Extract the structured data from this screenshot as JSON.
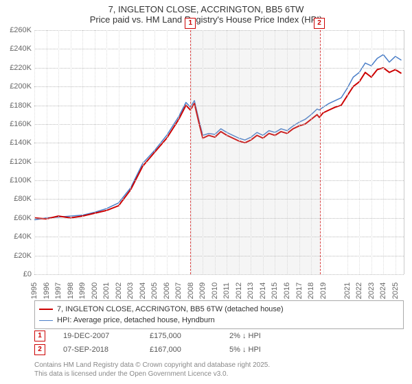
{
  "title": {
    "line1": "7, INGLETON CLOSE, ACCRINGTON, BB5 6TW",
    "line2": "Price paid vs. HM Land Registry's House Price Index (HPI)"
  },
  "chart": {
    "type": "line",
    "xlim": [
      1995,
      2025.7
    ],
    "ylim": [
      0,
      260000
    ],
    "ytick_step": 20000,
    "x_ticks": [
      1995,
      1996,
      1997,
      1998,
      1999,
      2000,
      2001,
      2002,
      2003,
      2004,
      2005,
      2006,
      2007,
      2008,
      2009,
      2010,
      2011,
      2012,
      2013,
      2014,
      2015,
      2016,
      2017,
      2018,
      2019,
      2021,
      2022,
      2023,
      2024,
      2025
    ],
    "y_ticks_labels": [
      "£0",
      "£20K",
      "£40K",
      "£60K",
      "£80K",
      "£100K",
      "£120K",
      "£140K",
      "£160K",
      "£180K",
      "£200K",
      "£220K",
      "£240K",
      "£260K"
    ],
    "background_color": "#ffffff",
    "grid_color": "#bbbbbb",
    "shaded_region": {
      "start": 2007.97,
      "end": 2018.68
    },
    "series": {
      "price_paid": {
        "label": "7, INGLETON CLOSE, ACCRINGTON, BB5 6TW (detached house)",
        "color": "#cc0000",
        "line_width": 2,
        "points": [
          [
            1995,
            60000
          ],
          [
            1996,
            59000
          ],
          [
            1997,
            62000
          ],
          [
            1998,
            60000
          ],
          [
            1999,
            62000
          ],
          [
            2000,
            65000
          ],
          [
            2001,
            68000
          ],
          [
            2002,
            73000
          ],
          [
            2003,
            90000
          ],
          [
            2004,
            115000
          ],
          [
            2005,
            130000
          ],
          [
            2006,
            145000
          ],
          [
            2007,
            165000
          ],
          [
            2007.6,
            180000
          ],
          [
            2007.97,
            175000
          ],
          [
            2008.3,
            182000
          ],
          [
            2008.7,
            160000
          ],
          [
            2009,
            145000
          ],
          [
            2009.5,
            148000
          ],
          [
            2010,
            146000
          ],
          [
            2010.5,
            152000
          ],
          [
            2011,
            148000
          ],
          [
            2011.5,
            145000
          ],
          [
            2012,
            142000
          ],
          [
            2012.5,
            140000
          ],
          [
            2013,
            143000
          ],
          [
            2013.5,
            148000
          ],
          [
            2014,
            145000
          ],
          [
            2014.5,
            150000
          ],
          [
            2015,
            148000
          ],
          [
            2015.5,
            152000
          ],
          [
            2016,
            150000
          ],
          [
            2016.5,
            155000
          ],
          [
            2017,
            158000
          ],
          [
            2017.5,
            160000
          ],
          [
            2018,
            165000
          ],
          [
            2018.5,
            170000
          ],
          [
            2018.68,
            167000
          ],
          [
            2019,
            172000
          ],
          [
            2019.5,
            175000
          ],
          [
            2020,
            178000
          ],
          [
            2020.5,
            180000
          ],
          [
            2021,
            190000
          ],
          [
            2021.5,
            200000
          ],
          [
            2022,
            205000
          ],
          [
            2022.5,
            215000
          ],
          [
            2023,
            210000
          ],
          [
            2023.5,
            218000
          ],
          [
            2024,
            220000
          ],
          [
            2024.5,
            215000
          ],
          [
            2025,
            218000
          ],
          [
            2025.5,
            214000
          ]
        ]
      },
      "hpi": {
        "label": "HPI: Average price, detached house, Hyndburn",
        "color": "#4a7ec8",
        "line_width": 1.5,
        "points": [
          [
            1995,
            58000
          ],
          [
            1996,
            60000
          ],
          [
            1997,
            61000
          ],
          [
            1998,
            62000
          ],
          [
            1999,
            63000
          ],
          [
            2000,
            66000
          ],
          [
            2001,
            70000
          ],
          [
            2002,
            76000
          ],
          [
            2003,
            92000
          ],
          [
            2004,
            118000
          ],
          [
            2005,
            132000
          ],
          [
            2006,
            148000
          ],
          [
            2007,
            168000
          ],
          [
            2007.6,
            183000
          ],
          [
            2007.97,
            178000
          ],
          [
            2008.3,
            185000
          ],
          [
            2008.7,
            163000
          ],
          [
            2009,
            148000
          ],
          [
            2009.5,
            150000
          ],
          [
            2010,
            149000
          ],
          [
            2010.5,
            155000
          ],
          [
            2011,
            151000
          ],
          [
            2011.5,
            148000
          ],
          [
            2012,
            145000
          ],
          [
            2012.5,
            143000
          ],
          [
            2013,
            146000
          ],
          [
            2013.5,
            151000
          ],
          [
            2014,
            148000
          ],
          [
            2014.5,
            153000
          ],
          [
            2015,
            151000
          ],
          [
            2015.5,
            155000
          ],
          [
            2016,
            153000
          ],
          [
            2016.5,
            158000
          ],
          [
            2017,
            162000
          ],
          [
            2017.5,
            165000
          ],
          [
            2018,
            170000
          ],
          [
            2018.5,
            176000
          ],
          [
            2018.68,
            175000
          ],
          [
            2019,
            178000
          ],
          [
            2019.5,
            182000
          ],
          [
            2020,
            185000
          ],
          [
            2020.5,
            188000
          ],
          [
            2021,
            198000
          ],
          [
            2021.5,
            210000
          ],
          [
            2022,
            215000
          ],
          [
            2022.5,
            225000
          ],
          [
            2023,
            222000
          ],
          [
            2023.5,
            230000
          ],
          [
            2024,
            234000
          ],
          [
            2024.5,
            226000
          ],
          [
            2025,
            232000
          ],
          [
            2025.5,
            228000
          ]
        ]
      }
    },
    "markers": [
      {
        "n": "1",
        "x": 2007.97,
        "top_offset": -18
      },
      {
        "n": "2",
        "x": 2018.68,
        "top_offset": -18
      }
    ]
  },
  "legend": {
    "items": [
      {
        "color": "#cc0000",
        "width": 2,
        "label": "7, INGLETON CLOSE, ACCRINGTON, BB5 6TW (detached house)"
      },
      {
        "color": "#4a7ec8",
        "width": 1.5,
        "label": "HPI: Average price, detached house, Hyndburn"
      }
    ]
  },
  "sales": [
    {
      "n": "1",
      "date": "19-DEC-2007",
      "price": "£175,000",
      "delta": "2% ↓ HPI"
    },
    {
      "n": "2",
      "date": "07-SEP-2018",
      "price": "£167,000",
      "delta": "5% ↓ HPI"
    }
  ],
  "footer": {
    "line1": "Contains HM Land Registry data © Crown copyright and database right 2025.",
    "line2": "This data is licensed under the Open Government Licence v3.0."
  }
}
